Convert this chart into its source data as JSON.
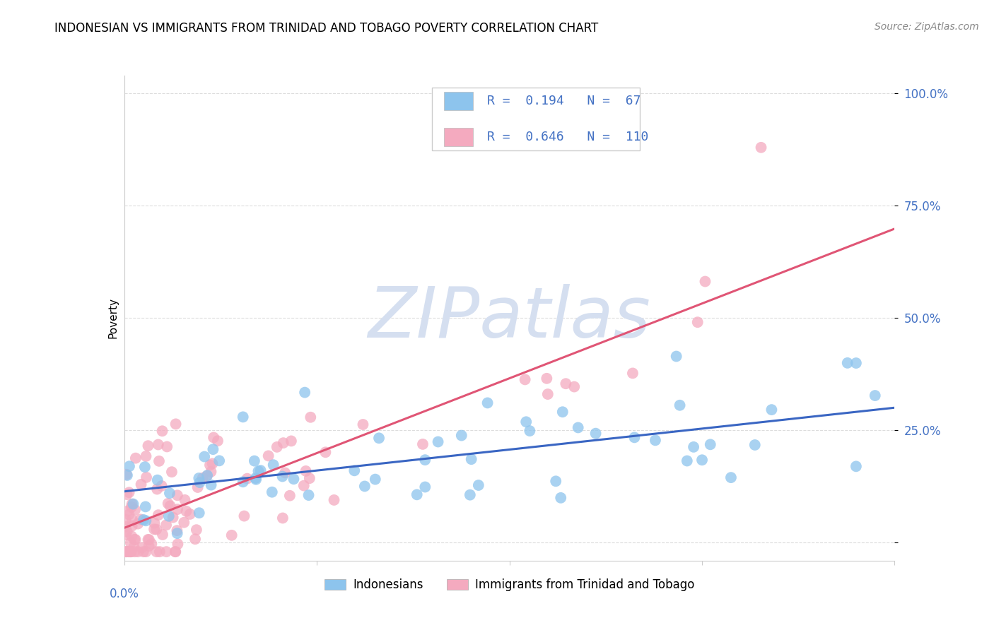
{
  "title": "INDONESIAN VS IMMIGRANTS FROM TRINIDAD AND TOBAGO POVERTY CORRELATION CHART",
  "source": "Source: ZipAtlas.com",
  "ylabel": "Poverty",
  "xlim": [
    0.0,
    0.3
  ],
  "ylim": [
    -0.04,
    1.04
  ],
  "blue_R": 0.194,
  "blue_N": 67,
  "pink_R": 0.646,
  "pink_N": 110,
  "blue_color": "#8DC4ED",
  "pink_color": "#F4AABF",
  "blue_line_color": "#3A66C3",
  "pink_line_color": "#E05575",
  "watermark_text": "ZIPatlas",
  "watermark_color": "#D5DFF0",
  "legend_label_blue": "Indonesians",
  "legend_label_pink": "Immigrants from Trinidad and Tobago",
  "legend_text_color": "#4472C4",
  "ytick_labels": [
    "",
    "25.0%",
    "50.0%",
    "75.0%",
    "100.0%"
  ],
  "ytick_vals": [
    0.0,
    0.25,
    0.5,
    0.75,
    1.0
  ],
  "xtick_vals": [
    0.0,
    0.075,
    0.15,
    0.225,
    0.3
  ],
  "grid_color": "#DDDDDD",
  "spine_color": "#CCCCCC",
  "title_fontsize": 12,
  "source_fontsize": 10,
  "tick_fontsize": 12,
  "ylabel_fontsize": 11,
  "legend_fontsize": 13,
  "blue_line_y0": 0.148,
  "blue_line_y1": 0.252,
  "pink_line_y0": 0.02,
  "pink_line_y1": 0.65
}
